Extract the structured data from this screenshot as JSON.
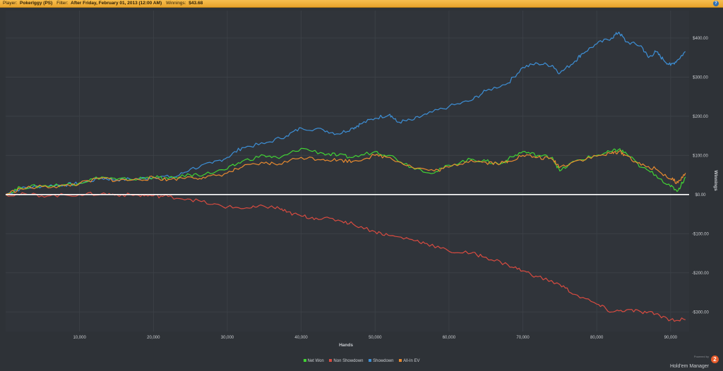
{
  "header": {
    "player_label": "Player:",
    "player_value": "Pokerlggy (PS)",
    "filter_label": "Filter:",
    "filter_value": "After Friday, February 01, 2013 (12:00 AM)",
    "winnings_label": "Winnings:",
    "winnings_value": "$43.68",
    "help_icon": "?"
  },
  "footer": {
    "powered_by": "Powered by",
    "brand_name": "Hold'em Manager",
    "brand_logo": "2"
  },
  "colors": {
    "background": "#2e3237",
    "grid": "#3d4248",
    "zero_line": "#ffffff",
    "axis_text": "#c9ccd0"
  },
  "chart_data": {
    "type": "line",
    "xlabel": "Hands",
    "ylabel": "Winnings",
    "xlim": [
      0,
      92500
    ],
    "ylim": [
      -350,
      470
    ],
    "x_ticks": [
      10000,
      20000,
      30000,
      40000,
      50000,
      60000,
      70000,
      80000,
      90000
    ],
    "x_tick_labels": [
      "10,000",
      "20,000",
      "30,000",
      "40,000",
      "50,000",
      "60,000",
      "70,000",
      "80,000",
      "90,000"
    ],
    "y_ticks": [
      -300,
      -200,
      -100,
      0,
      100,
      200,
      300,
      400
    ],
    "y_tick_labels": [
      "-$300.00",
      "-$200.00",
      "-$100.00",
      "$0.00",
      "$100.00",
      "$200.00",
      "$300.00",
      "$400.00"
    ],
    "y_axis_side": "right",
    "grid": true,
    "legend_position": "bottom-center",
    "series": [
      {
        "name": "Showdown",
        "color": "#3d8fd6",
        "points": [
          [
            0,
            0
          ],
          [
            2000,
            15
          ],
          [
            5000,
            22
          ],
          [
            8000,
            25
          ],
          [
            10000,
            28
          ],
          [
            13000,
            42
          ],
          [
            15000,
            38
          ],
          [
            18000,
            40
          ],
          [
            20000,
            45
          ],
          [
            23000,
            45
          ],
          [
            25000,
            65
          ],
          [
            28000,
            80
          ],
          [
            30000,
            95
          ],
          [
            32000,
            120
          ],
          [
            35000,
            130
          ],
          [
            38000,
            150
          ],
          [
            40000,
            170
          ],
          [
            43000,
            165
          ],
          [
            45000,
            155
          ],
          [
            47000,
            170
          ],
          [
            48000,
            180
          ],
          [
            50000,
            195
          ],
          [
            52000,
            205
          ],
          [
            53000,
            185
          ],
          [
            55000,
            190
          ],
          [
            57000,
            205
          ],
          [
            60000,
            225
          ],
          [
            63000,
            240
          ],
          [
            65000,
            265
          ],
          [
            68000,
            285
          ],
          [
            70000,
            325
          ],
          [
            72000,
            335
          ],
          [
            74000,
            330
          ],
          [
            75000,
            310
          ],
          [
            77000,
            340
          ],
          [
            78000,
            360
          ],
          [
            80000,
            385
          ],
          [
            82000,
            400
          ],
          [
            83000,
            415
          ],
          [
            84000,
            390
          ],
          [
            86000,
            380
          ],
          [
            87000,
            350
          ],
          [
            88000,
            365
          ],
          [
            89000,
            345
          ],
          [
            90000,
            330
          ],
          [
            91000,
            345
          ],
          [
            92000,
            365
          ]
        ]
      },
      {
        "name": "Net Won",
        "color": "#41d334",
        "points": [
          [
            0,
            0
          ],
          [
            2000,
            18
          ],
          [
            5000,
            22
          ],
          [
            8000,
            25
          ],
          [
            10000,
            30
          ],
          [
            13000,
            45
          ],
          [
            15000,
            38
          ],
          [
            18000,
            40
          ],
          [
            20000,
            45
          ],
          [
            22000,
            40
          ],
          [
            25000,
            50
          ],
          [
            27000,
            52
          ],
          [
            30000,
            65
          ],
          [
            32000,
            85
          ],
          [
            35000,
            100
          ],
          [
            37000,
            92
          ],
          [
            40000,
            118
          ],
          [
            43000,
            105
          ],
          [
            45000,
            100
          ],
          [
            47000,
            95
          ],
          [
            50000,
            110
          ],
          [
            52000,
            100
          ],
          [
            55000,
            70
          ],
          [
            58000,
            55
          ],
          [
            60000,
            75
          ],
          [
            63000,
            90
          ],
          [
            65000,
            85
          ],
          [
            67000,
            78
          ],
          [
            68000,
            90
          ],
          [
            70000,
            110
          ],
          [
            72000,
            100
          ],
          [
            74000,
            95
          ],
          [
            75000,
            60
          ],
          [
            77000,
            85
          ],
          [
            80000,
            100
          ],
          [
            82000,
            110
          ],
          [
            83000,
            115
          ],
          [
            84000,
            105
          ],
          [
            86000,
            70
          ],
          [
            88000,
            50
          ],
          [
            90000,
            20
          ],
          [
            91000,
            10
          ],
          [
            92000,
            45
          ]
        ]
      },
      {
        "name": "All-In EV",
        "color": "#e88a2f",
        "points": [
          [
            0,
            0
          ],
          [
            2000,
            15
          ],
          [
            5000,
            20
          ],
          [
            8000,
            22
          ],
          [
            10000,
            28
          ],
          [
            13000,
            42
          ],
          [
            15000,
            36
          ],
          [
            18000,
            38
          ],
          [
            20000,
            43
          ],
          [
            22000,
            38
          ],
          [
            25000,
            45
          ],
          [
            27000,
            42
          ],
          [
            30000,
            55
          ],
          [
            32000,
            70
          ],
          [
            35000,
            80
          ],
          [
            37000,
            78
          ],
          [
            40000,
            95
          ],
          [
            43000,
            90
          ],
          [
            45000,
            88
          ],
          [
            47000,
            85
          ],
          [
            50000,
            100
          ],
          [
            52000,
            95
          ],
          [
            55000,
            70
          ],
          [
            58000,
            60
          ],
          [
            60000,
            70
          ],
          [
            63000,
            88
          ],
          [
            65000,
            82
          ],
          [
            67000,
            80
          ],
          [
            68000,
            85
          ],
          [
            70000,
            100
          ],
          [
            72000,
            95
          ],
          [
            74000,
            90
          ],
          [
            75000,
            70
          ],
          [
            77000,
            85
          ],
          [
            80000,
            98
          ],
          [
            82000,
            105
          ],
          [
            83000,
            110
          ],
          [
            84000,
            100
          ],
          [
            86000,
            75
          ],
          [
            88000,
            65
          ],
          [
            90000,
            40
          ],
          [
            91000,
            30
          ],
          [
            92000,
            55
          ]
        ]
      },
      {
        "name": "Non Showdown",
        "color": "#d84b40",
        "points": [
          [
            0,
            0
          ],
          [
            3000,
            0
          ],
          [
            6000,
            -3
          ],
          [
            10000,
            0
          ],
          [
            13000,
            2
          ],
          [
            15000,
            0
          ],
          [
            18000,
            -2
          ],
          [
            20000,
            -3
          ],
          [
            22000,
            -5
          ],
          [
            25000,
            -12
          ],
          [
            28000,
            -25
          ],
          [
            30000,
            -32
          ],
          [
            33000,
            -35
          ],
          [
            35000,
            -30
          ],
          [
            37000,
            -35
          ],
          [
            38000,
            -45
          ],
          [
            40000,
            -55
          ],
          [
            42000,
            -60
          ],
          [
            45000,
            -65
          ],
          [
            47000,
            -75
          ],
          [
            50000,
            -95
          ],
          [
            52000,
            -105
          ],
          [
            55000,
            -115
          ],
          [
            57000,
            -125
          ],
          [
            60000,
            -145
          ],
          [
            63000,
            -150
          ],
          [
            65000,
            -160
          ],
          [
            68000,
            -180
          ],
          [
            70000,
            -195
          ],
          [
            72000,
            -210
          ],
          [
            75000,
            -230
          ],
          [
            77000,
            -255
          ],
          [
            80000,
            -280
          ],
          [
            82000,
            -300
          ],
          [
            84000,
            -295
          ],
          [
            86000,
            -300
          ],
          [
            88000,
            -305
          ],
          [
            90000,
            -320
          ],
          [
            92000,
            -320
          ]
        ]
      }
    ]
  }
}
